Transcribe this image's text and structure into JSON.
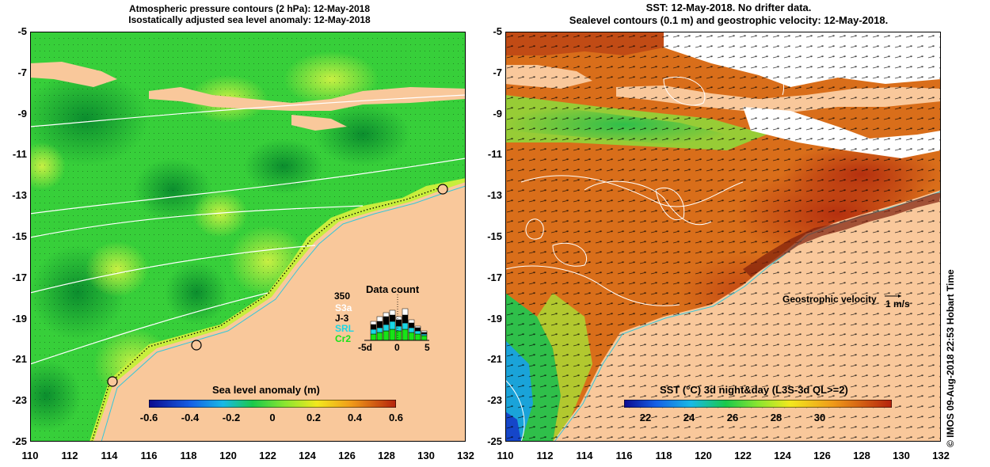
{
  "left_panel": {
    "title_line1": "Atmospheric pressure contours (2 hPa): 12-May-2018",
    "title_line2": "Isostatically adjusted sea level anomaly: 12-May-2018",
    "colorbar_label": "Sea level anomaly (m)",
    "colorbar_ticks": [
      "-0.6",
      "-0.4",
      "-0.2",
      "0",
      "0.2",
      "0.4",
      "0.6"
    ],
    "inset": {
      "title": "Data count",
      "ymax": "350",
      "series": [
        {
          "name": "S3a",
          "color": "#ffffff"
        },
        {
          "name": "J-3",
          "color": "#000000"
        },
        {
          "name": "SRL",
          "color": "#19d7e6"
        },
        {
          "name": "Cr2",
          "color": "#17e317"
        }
      ],
      "xticks": [
        "-5d",
        "0",
        "5"
      ]
    }
  },
  "right_panel": {
    "title_line1": "SST: 12-May-2018. No drifter data.",
    "title_line2": "Sealevel contours (0.1 m) and geostrophic velocity: 12-May-2018.",
    "velocity_label": "Geostrophic velocity",
    "velocity_scale": "1 m/s",
    "colorbar_label": "SST (°C) 3d night&day (L3S-3d QL>=2)",
    "colorbar_ticks": [
      "22",
      "24",
      "26",
      "28",
      "30"
    ]
  },
  "axes": {
    "x_ticks": [
      "110",
      "112",
      "114",
      "116",
      "118",
      "120",
      "122",
      "124",
      "126",
      "128",
      "130",
      "132"
    ],
    "y_ticks": [
      "-5",
      "-7",
      "-9",
      "-11",
      "-13",
      "-15",
      "-17",
      "-19",
      "-21",
      "-23",
      "-25"
    ]
  },
  "credit": "© IMOS 09-Aug-2018 22:53 Hobart Time",
  "colors": {
    "land": "#f9c89b",
    "sla_green": "#33d33a",
    "sst_orange": "#d9701a",
    "coast_line": "#36c7d9"
  }
}
